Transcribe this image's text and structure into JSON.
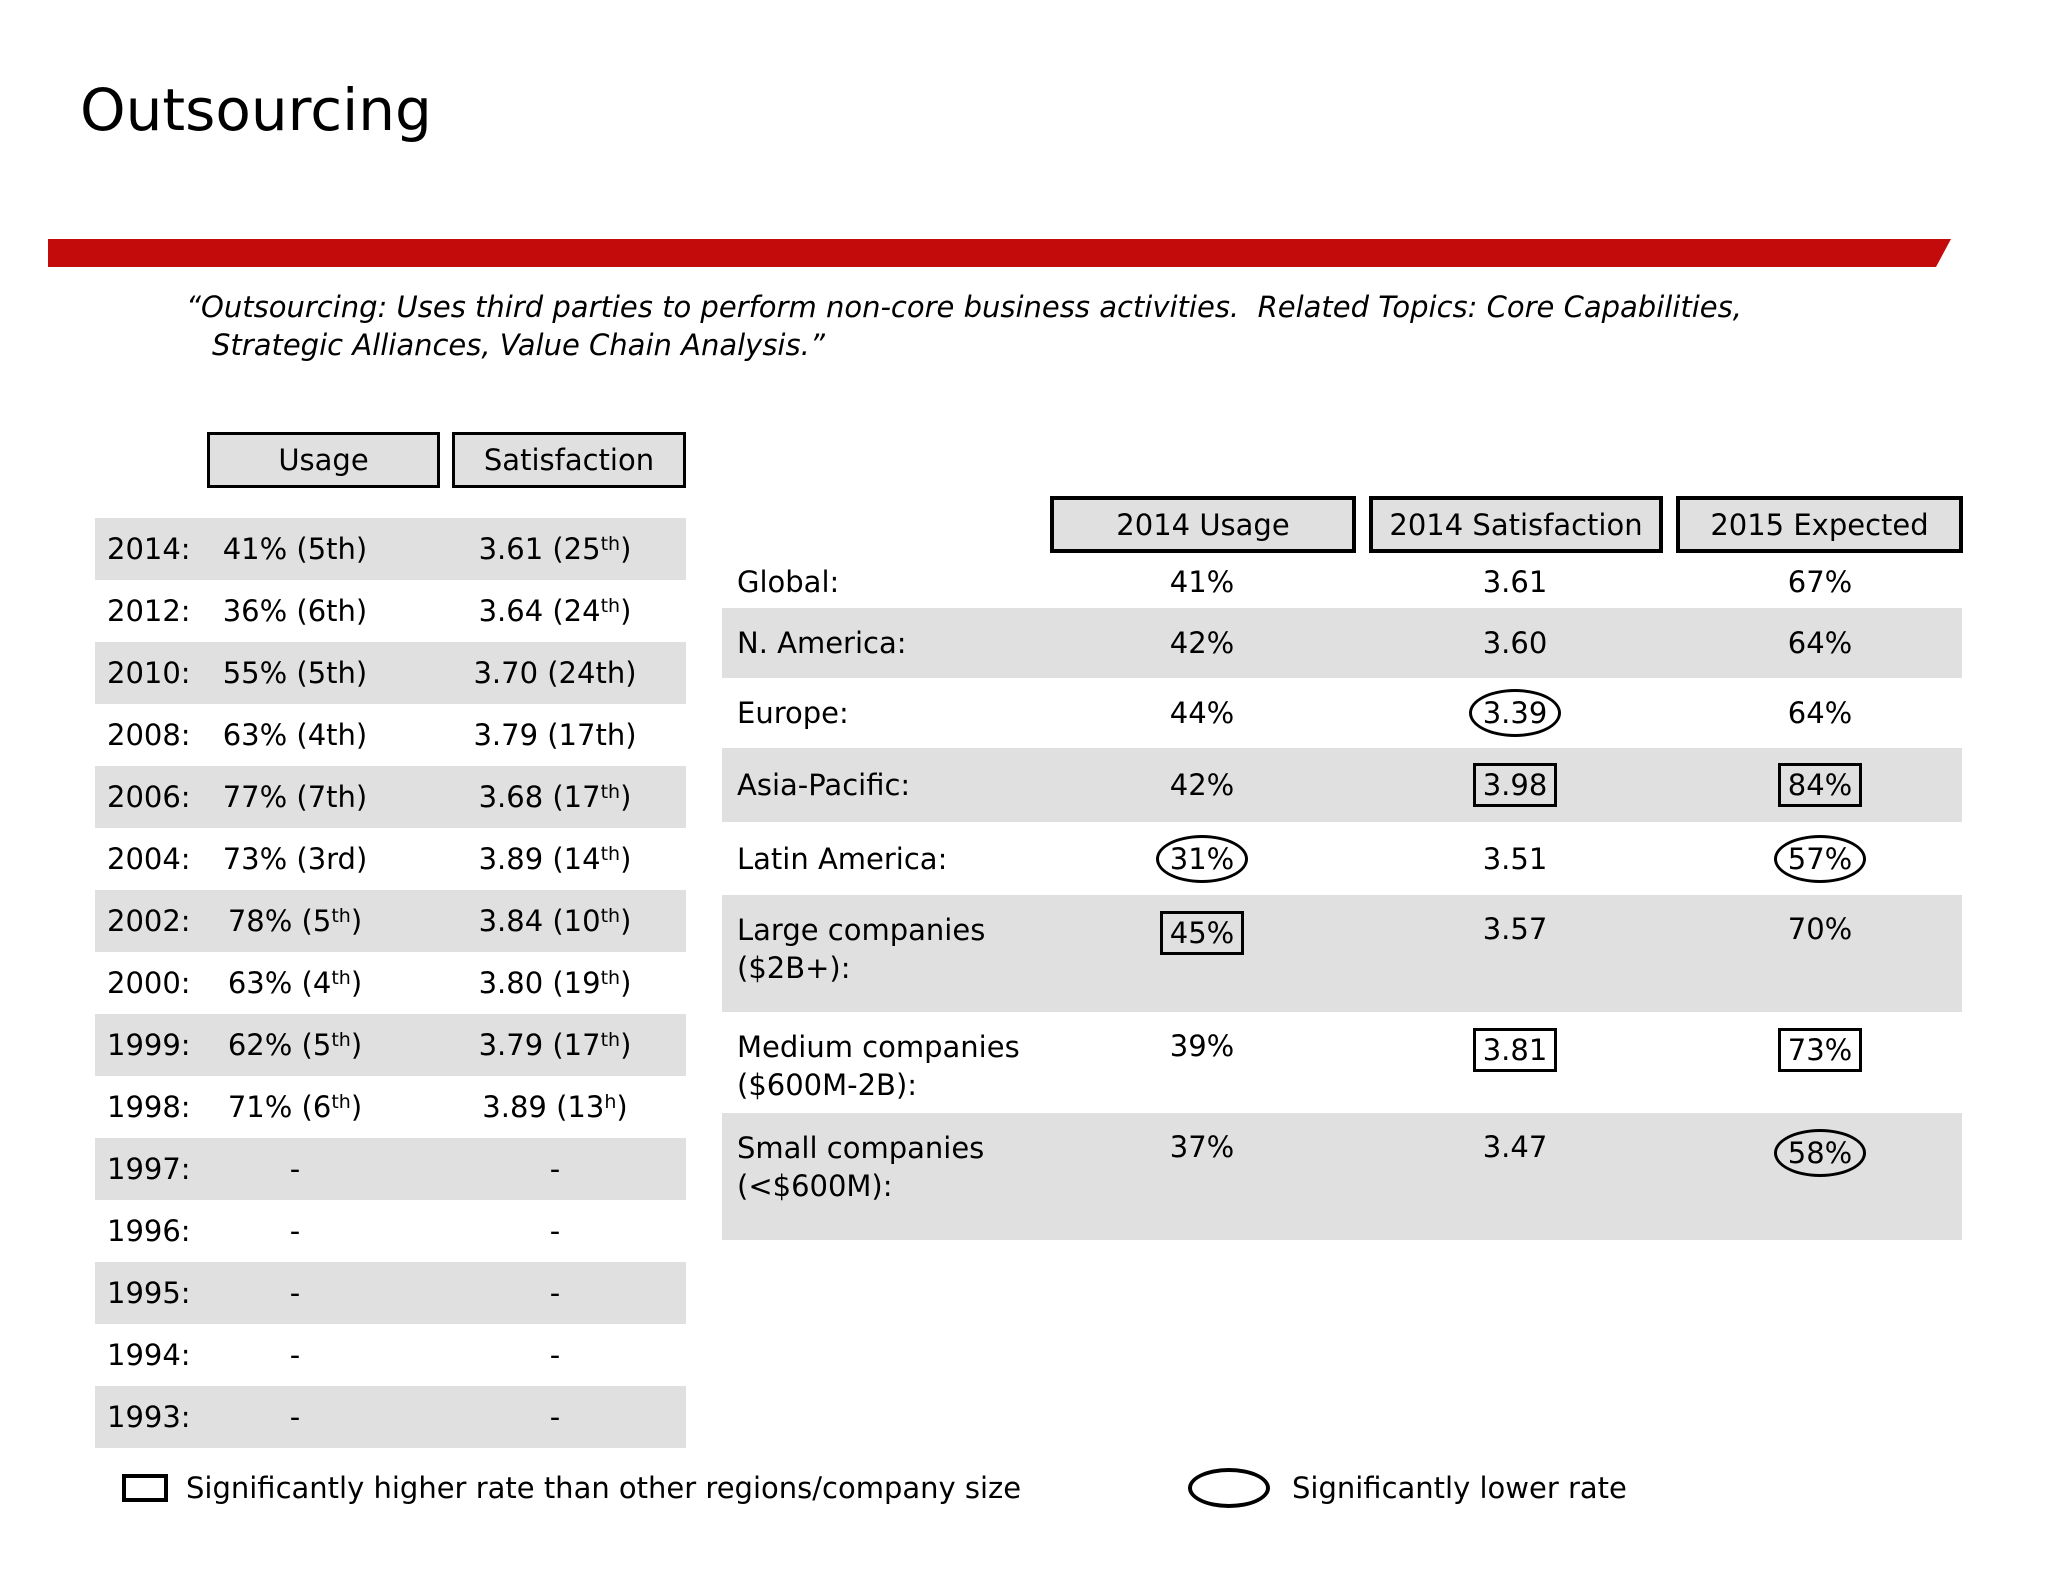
{
  "title": "Outsourcing",
  "quote": {
    "line1": "“Outsourcing: Uses third parties to perform non-core business activities.  Related Topics: Core Capabilities,",
    "line2": "Strategic Alliances, Value Chain Analysis.”"
  },
  "history_table": {
    "usage_header": "Usage",
    "satisfaction_header": "Satisfaction",
    "rows": [
      {
        "year": "2014:",
        "usage": [
          {
            "t": "41% (5th)"
          }
        ],
        "satisfaction": [
          {
            "t": "3.61 (25"
          },
          {
            "t": "th",
            "sup": true
          },
          {
            "t": ")"
          }
        ]
      },
      {
        "year": "2012:",
        "usage": [
          {
            "t": "36% (6th)"
          }
        ],
        "satisfaction": [
          {
            "t": "3.64 (24"
          },
          {
            "t": "th",
            "sup": true
          },
          {
            "t": ")"
          }
        ]
      },
      {
        "year": "2010:",
        "usage": [
          {
            "t": "55% (5th)"
          }
        ],
        "satisfaction": [
          {
            "t": "3.70 (24th)"
          }
        ]
      },
      {
        "year": "2008:",
        "usage": [
          {
            "t": "63% (4th)"
          }
        ],
        "satisfaction": [
          {
            "t": "3.79 (17th)"
          }
        ]
      },
      {
        "year": "2006:",
        "usage": [
          {
            "t": "77% (7th)"
          }
        ],
        "satisfaction": [
          {
            "t": "3.68 (17"
          },
          {
            "t": "th",
            "sup": true
          },
          {
            "t": ")"
          }
        ]
      },
      {
        "year": "2004:",
        "usage": [
          {
            "t": "73% (3rd)"
          }
        ],
        "satisfaction": [
          {
            "t": "3.89 (14"
          },
          {
            "t": "th",
            "sup": true
          },
          {
            "t": ")"
          }
        ]
      },
      {
        "year": "2002:",
        "usage": [
          {
            "t": "78% (5"
          },
          {
            "t": "th",
            "sup": true
          },
          {
            "t": ")"
          }
        ],
        "satisfaction": [
          {
            "t": "3.84 (10"
          },
          {
            "t": "th",
            "sup": true
          },
          {
            "t": ")"
          }
        ]
      },
      {
        "year": "2000:",
        "usage": [
          {
            "t": "63% (4"
          },
          {
            "t": "th",
            "sup": true
          },
          {
            "t": ")"
          }
        ],
        "satisfaction": [
          {
            "t": "3.80 (19"
          },
          {
            "t": "th",
            "sup": true
          },
          {
            "t": ")"
          }
        ]
      },
      {
        "year": "1999:",
        "usage": [
          {
            "t": "62% (5"
          },
          {
            "t": "th",
            "sup": true
          },
          {
            "t": ")"
          }
        ],
        "satisfaction": [
          {
            "t": "3.79 (17"
          },
          {
            "t": "th",
            "sup": true
          },
          {
            "t": ")"
          }
        ]
      },
      {
        "year": "1998:",
        "usage": [
          {
            "t": "71% (6"
          },
          {
            "t": "th",
            "sup": true
          },
          {
            "t": ")"
          }
        ],
        "satisfaction": [
          {
            "t": "3.89 (13"
          },
          {
            "t": "h",
            "sup": true
          },
          {
            "t": ")"
          }
        ]
      },
      {
        "year": "1997:",
        "usage": [
          {
            "t": "-"
          }
        ],
        "satisfaction": [
          {
            "t": "-"
          }
        ]
      },
      {
        "year": "1996:",
        "usage": [
          {
            "t": "-"
          }
        ],
        "satisfaction": [
          {
            "t": "-"
          }
        ]
      },
      {
        "year": "1995:",
        "usage": [
          {
            "t": "-"
          }
        ],
        "satisfaction": [
          {
            "t": "-"
          }
        ]
      },
      {
        "year": "1994:",
        "usage": [
          {
            "t": "-"
          }
        ],
        "satisfaction": [
          {
            "t": "-"
          }
        ]
      },
      {
        "year": "1993:",
        "usage": [
          {
            "t": "-"
          }
        ],
        "satisfaction": [
          {
            "t": "-"
          }
        ]
      }
    ]
  },
  "regional_table": {
    "headers": [
      "2014 Usage",
      "2014 Satisfaction",
      "2015 Expected"
    ],
    "rows": [
      {
        "label1": "Global:",
        "label2": "",
        "cells": [
          {
            "v": "41%",
            "mark": "none"
          },
          {
            "v": "3.61",
            "mark": "none"
          },
          {
            "v": "67%",
            "mark": "none"
          }
        ]
      },
      {
        "label1": "N. America:",
        "label2": "",
        "cells": [
          {
            "v": "42%",
            "mark": "none"
          },
          {
            "v": "3.60",
            "mark": "none"
          },
          {
            "v": "64%",
            "mark": "none"
          }
        ]
      },
      {
        "label1": "Europe:",
        "label2": "",
        "cells": [
          {
            "v": "44%",
            "mark": "none"
          },
          {
            "v": "3.39",
            "mark": "ellipse"
          },
          {
            "v": "64%",
            "mark": "none"
          }
        ]
      },
      {
        "label1": "Asia-Pacific:",
        "label2": "",
        "cells": [
          {
            "v": "42%",
            "mark": "none"
          },
          {
            "v": "3.98",
            "mark": "box"
          },
          {
            "v": "84%",
            "mark": "box"
          }
        ]
      },
      {
        "label1": "Latin America:",
        "label2": "",
        "cells": [
          {
            "v": "31%",
            "mark": "ellipse"
          },
          {
            "v": "3.51",
            "mark": "none"
          },
          {
            "v": "57%",
            "mark": "ellipse"
          }
        ]
      },
      {
        "label1": "Large companies",
        "label2": "($2B+):",
        "cells": [
          {
            "v": "45%",
            "mark": "box"
          },
          {
            "v": "3.57",
            "mark": "none"
          },
          {
            "v": "70%",
            "mark": "none"
          }
        ]
      },
      {
        "label1": "Medium companies",
        "label2": "($600M-2B):",
        "cells": [
          {
            "v": "39%",
            "mark": "none"
          },
          {
            "v": "3.81",
            "mark": "box"
          },
          {
            "v": "73%",
            "mark": "box"
          }
        ]
      },
      {
        "label1": "Small companies",
        "label2": "(<$600M):",
        "cells": [
          {
            "v": "37%",
            "mark": "none"
          },
          {
            "v": "3.47",
            "mark": "none"
          },
          {
            "v": "58%",
            "mark": "ellipse"
          }
        ]
      }
    ]
  },
  "legend": {
    "higher_label": "Significantly higher rate than other regions/company size",
    "lower_label": "Significantly lower rate"
  },
  "colors": {
    "accent_red": "#C40B0B",
    "stripe_gray": "#E0E0E0"
  }
}
